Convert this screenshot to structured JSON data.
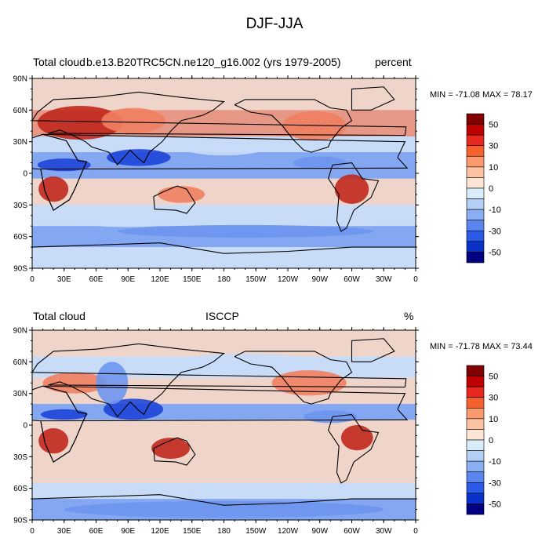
{
  "title": "DJF-JJA",
  "panels": [
    {
      "left_label": "Total cloud",
      "center_label": "b.e13.B20TRC5CN.ne120_g16.002 (yrs 1979-2005)",
      "right_label": "percent",
      "stats": "MIN = -71.08 MAX =  78.17"
    },
    {
      "left_label": "Total cloud",
      "center_label": "ISCCP",
      "right_label": "%",
      "stats": "MIN = -71.78 MAX =  73.44"
    }
  ],
  "axes": {
    "lat_labels": [
      "90N",
      "60N",
      "30N",
      "0",
      "30S",
      "60S",
      "90S"
    ],
    "lon_labels": [
      "0",
      "30E",
      "60E",
      "90E",
      "120E",
      "150E",
      "180",
      "150W",
      "120W",
      "90W",
      "60W",
      "30W",
      "0"
    ]
  },
  "colorbar": {
    "labels": [
      "50",
      "30",
      "10",
      "0",
      "-10",
      "-30",
      "-50"
    ],
    "colors": [
      "#800000",
      "#c00000",
      "#e8281e",
      "#f4602e",
      "#fb9a6e",
      "#fcc2a2",
      "#fde6d6",
      "#d8ecfa",
      "#b4cff6",
      "#8aaef2",
      "#5a84ee",
      "#2c5ae8",
      "#0a32c8",
      "#000080"
    ]
  },
  "palette": {
    "land_outline": "#000000",
    "strong_positive": "#c0281e",
    "positive": "#f08060",
    "weak_positive": "#fcd2ba",
    "neutral": "#f6f8fc",
    "weak_negative": "#c8dcf8",
    "negative": "#6e96f0",
    "strong_negative": "#1e46d8"
  }
}
